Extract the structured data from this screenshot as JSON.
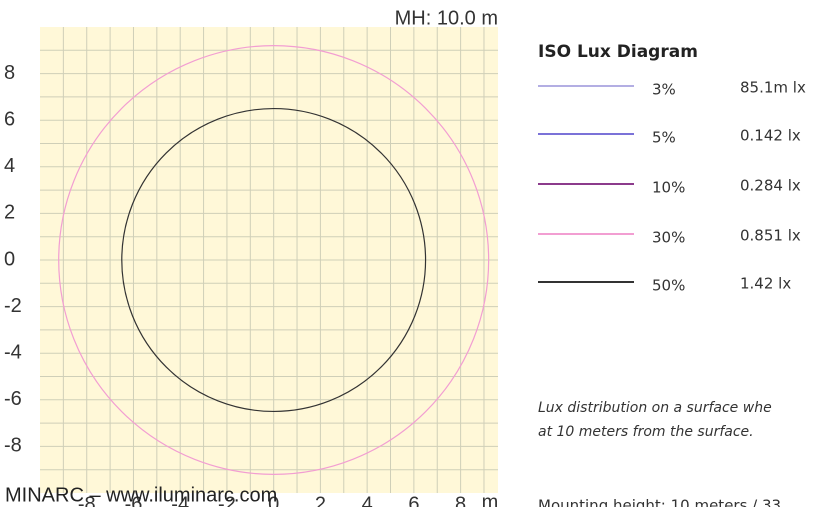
{
  "chart_data": {
    "type": "contour",
    "title": "MH: 10.0 m",
    "legend_title": "ISO Lux Diagram",
    "xlabel": "m",
    "xlim": [
      -10,
      9.6
    ],
    "ylim": [
      -10,
      10
    ],
    "xticks": [
      -8,
      -6,
      -4,
      -2,
      0,
      2,
      4,
      6,
      8
    ],
    "yticks": [
      -8,
      -6,
      -4,
      -2,
      0,
      2,
      4,
      6,
      8
    ],
    "xminor_ticks": [
      -9,
      -7,
      -5,
      -3,
      -1,
      1,
      3,
      5,
      7,
      9
    ],
    "yminor_ticks": [
      -9,
      -7,
      -5,
      -3,
      -1,
      1,
      3,
      5,
      7,
      9
    ],
    "grid": true,
    "background": "#fff8d8",
    "grid_color": "#cfcfb8",
    "series": [
      {
        "name": "3%",
        "lux_label": "85.1m lx",
        "color": "#b3aee3",
        "radius": null
      },
      {
        "name": "5%",
        "lux_label": "0.142 lx",
        "color": "#7b72d8",
        "radius": null
      },
      {
        "name": "10%",
        "lux_label": "0.284 lx",
        "color": "#8c3b8c",
        "radius": null
      },
      {
        "name": "30%",
        "lux_label": "0.851 lx",
        "color": "#f29ed2",
        "radius": 9.2
      },
      {
        "name": "50%",
        "lux_label": "1.42 lx",
        "color": "#333333",
        "radius": 6.5
      }
    ],
    "notes": [
      "Lux distribution on a surface whe",
      "at 10 meters from the surface.",
      "Mounting height: 10 meters / 33"
    ],
    "footer": "MINARC – www.iluminarc.com"
  }
}
